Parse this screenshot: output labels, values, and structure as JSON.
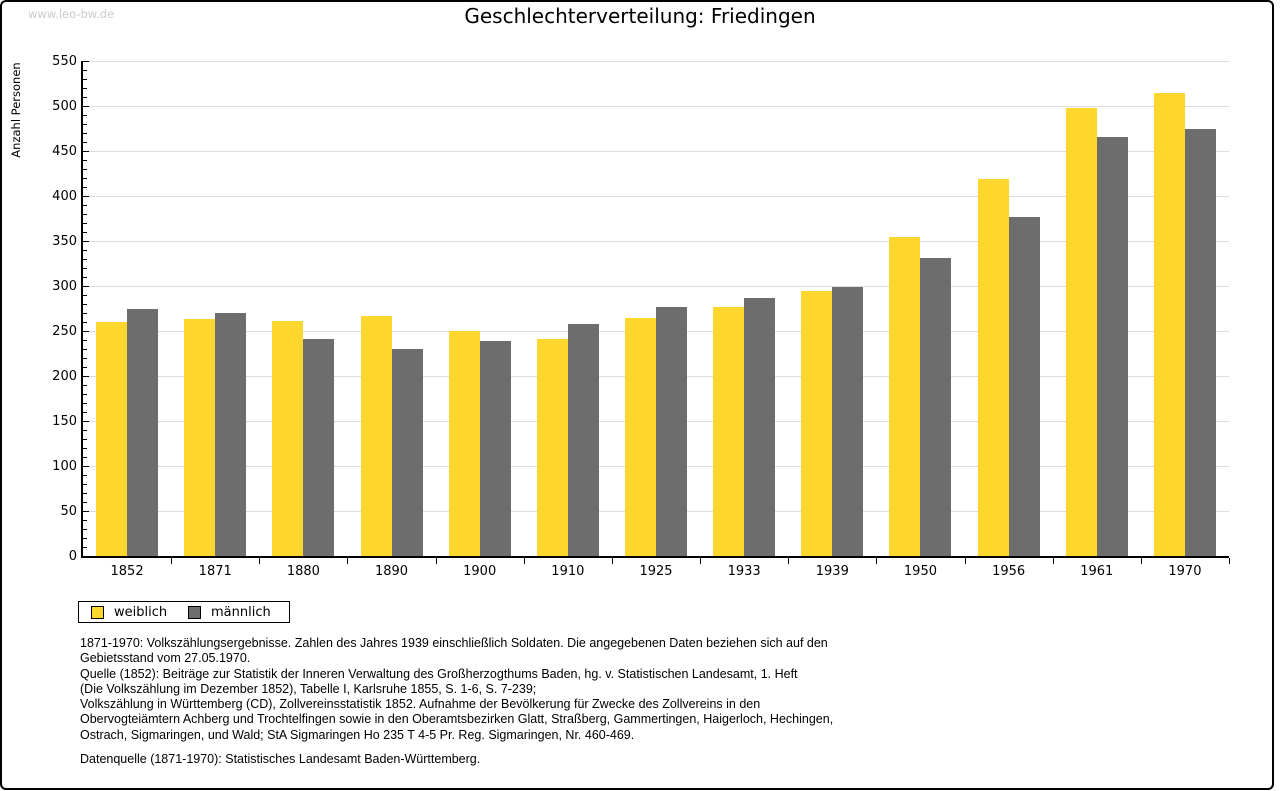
{
  "watermark": "www.leo-bw.de",
  "title": "Geschlechterverteilung: Friedingen",
  "chart_data": {
    "type": "bar",
    "title": "Geschlechterverteilung: Friedingen",
    "xlabel": "",
    "ylabel": "Anzahl Personen",
    "categories": [
      "1852",
      "1871",
      "1880",
      "1890",
      "1900",
      "1910",
      "1925",
      "1933",
      "1939",
      "1950",
      "1956",
      "1961",
      "1970"
    ],
    "series": [
      {
        "name": "weiblich",
        "color": "#FDD62E",
        "values": [
          260,
          263,
          261,
          267,
          250,
          241,
          264,
          277,
          295,
          354,
          419,
          498,
          515
        ]
      },
      {
        "name": "männlich",
        "color": "#6D6D6D",
        "values": [
          275,
          270,
          241,
          230,
          239,
          258,
          277,
          287,
          299,
          331,
          377,
          466,
          475
        ]
      }
    ],
    "ylim": [
      0,
      550
    ],
    "ytick_step": 50,
    "yminor_step": 10,
    "grid": true,
    "legend_position": "bottom-left"
  },
  "legend": {
    "items": [
      {
        "label": "weiblich",
        "color": "#FDD62E"
      },
      {
        "label": "männlich",
        "color": "#6D6D6D"
      }
    ]
  },
  "footnotes": {
    "lines": [
      "1871-1970: Volkszählungsergebnisse. Zahlen des Jahres 1939 einschließlich Soldaten. Die angegebenen Daten beziehen sich auf den",
      "Gebietsstand vom 27.05.1970.",
      "Quelle (1852): Beiträge zur Statistik der Inneren Verwaltung des Großherzogthums Baden, hg. v. Statistischen Landesamt, 1. Heft",
      "(Die Volkszählung im Dezember 1852), Tabelle I, Karlsruhe 1855, S. 1-6, S. 7-239;",
      "Volkszählung in Württemberg (CD), Zollvereinsstatistik 1852. Aufnahme der Bevölkerung für Zwecke des Zollvereins in den",
      "Obervogteiämtern Achberg und Trochtelfingen sowie in den Oberamtsbezirken Glatt, Straßberg, Gammertingen, Haigerloch, Hechingen,",
      "Ostrach, Sigmaringen, und Wald; StA Sigmaringen Ho 235 T 4-5 Pr. Reg. Sigmaringen, Nr. 460-469."
    ],
    "datasource": "Datenquelle (1871-1970): Statistisches Landesamt Baden-Württemberg."
  },
  "colors": {
    "weiblich": "#FDD62E",
    "männlich": "#6D6D6D",
    "gridline": "#dcdcdc",
    "axis": "#000000",
    "watermark": "#cbcbcb"
  }
}
